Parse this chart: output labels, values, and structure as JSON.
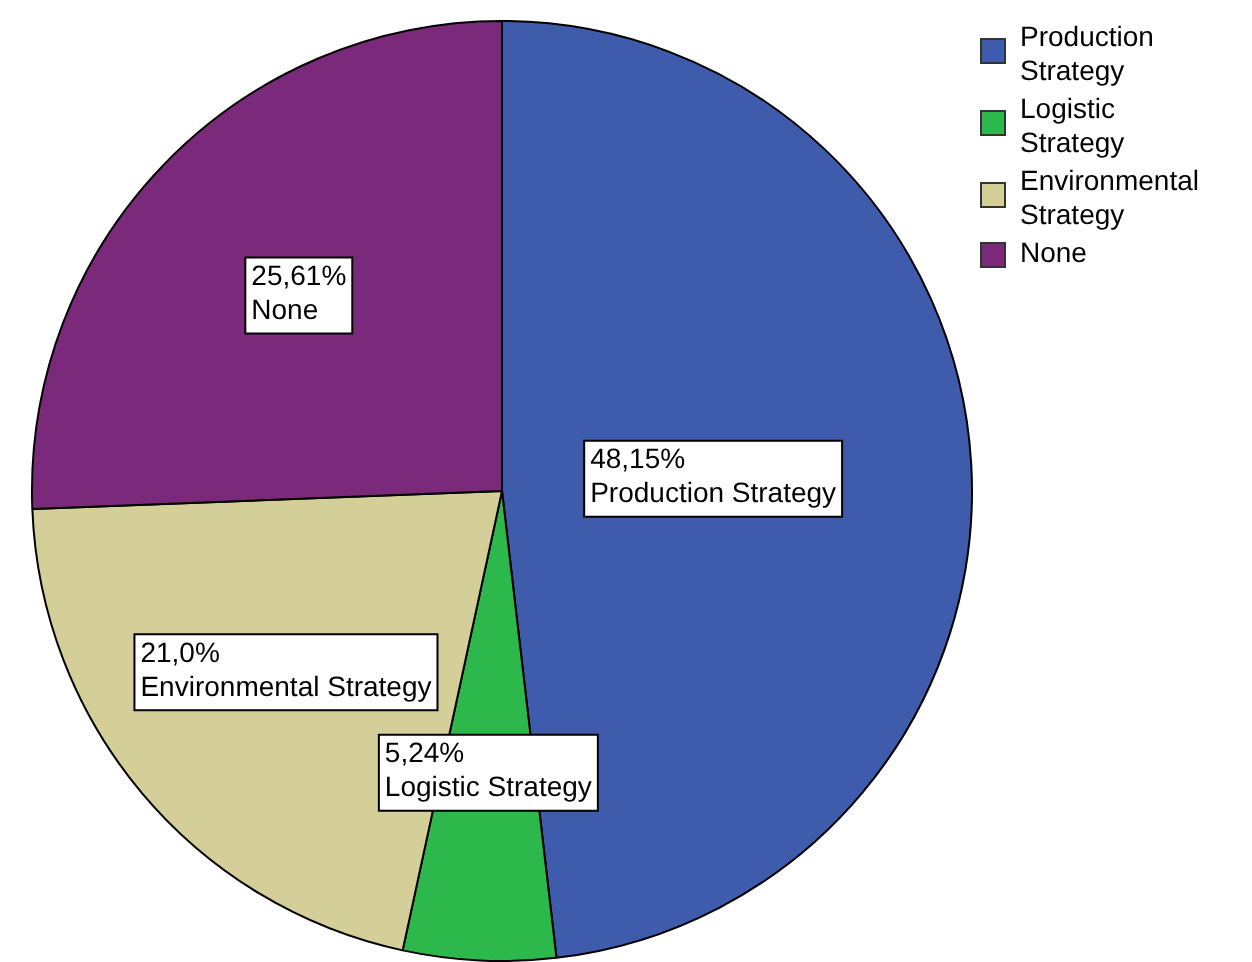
{
  "chart_data": {
    "type": "pie",
    "categories": [
      "Production Strategy",
      "Logistic Strategy",
      "Environmental Strategy",
      "None"
    ],
    "values": [
      48.15,
      5.24,
      21.0,
      25.61
    ],
    "colors": [
      "#3f5bab",
      "#2db84b",
      "#d4cf99",
      "#7b2a7b"
    ],
    "value_labels": [
      "48,15%",
      "5,24%",
      "21,0%",
      "25,61%"
    ],
    "legend": "top right"
  }
}
